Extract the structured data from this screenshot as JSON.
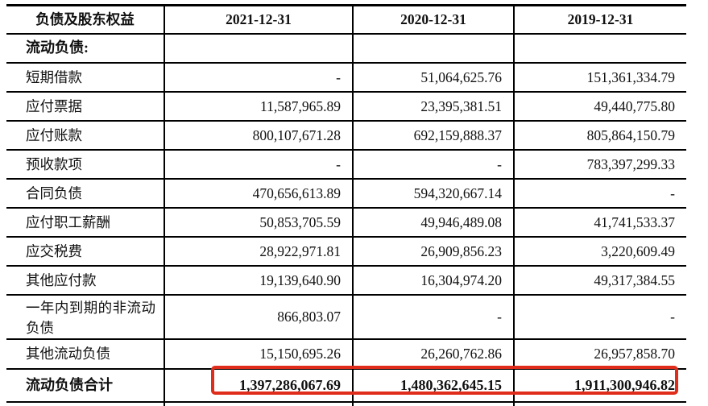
{
  "page": {
    "background_color": "#ffffff",
    "text_color": "#111111",
    "line_color": "#000000",
    "highlight_color": "#df2c1b"
  },
  "table": {
    "header": [
      "负债及股东权益",
      "2021-12-31",
      "2020-12-31",
      "2019-12-31"
    ],
    "rows": [
      {
        "label": "流动负债:",
        "values": [
          "",
          "",
          ""
        ]
      },
      {
        "label": "短期借款",
        "values": [
          "-",
          "51,064,625.76",
          "151,361,334.79"
        ]
      },
      {
        "label": "应付票据",
        "values": [
          "11,587,965.89",
          "23,395,381.51",
          "49,440,775.80"
        ]
      },
      {
        "label": "应付账款",
        "values": [
          "800,107,671.28",
          "692,159,888.37",
          "805,864,150.79"
        ]
      },
      {
        "label": "预收款项",
        "values": [
          "-",
          "-",
          "783,397,299.33"
        ]
      },
      {
        "label": "合同负债",
        "values": [
          "470,656,613.89",
          "594,320,667.14",
          "-"
        ]
      },
      {
        "label": "应付职工薪酬",
        "values": [
          "50,853,705.59",
          "49,946,489.08",
          "41,741,533.37"
        ]
      },
      {
        "label": "应交税费",
        "values": [
          "28,922,971.81",
          "26,909,856.23",
          "3,220,609.49"
        ]
      },
      {
        "label": "其他应付款",
        "values": [
          "19,139,640.90",
          "16,304,974.20",
          "49,317,384.55"
        ]
      },
      {
        "label": "一年内到期的非流动负债",
        "values": [
          "866,803.07",
          "-",
          "-"
        ]
      },
      {
        "label": "其他流动负债",
        "values": [
          "15,150,695.26",
          "26,260,762.86",
          "26,957,858.70"
        ]
      },
      {
        "label": "流动负债合计",
        "values": [
          "1,397,286,067.69",
          "1,480,362,645.15",
          "1,911,300,946.82"
        ]
      }
    ]
  }
}
